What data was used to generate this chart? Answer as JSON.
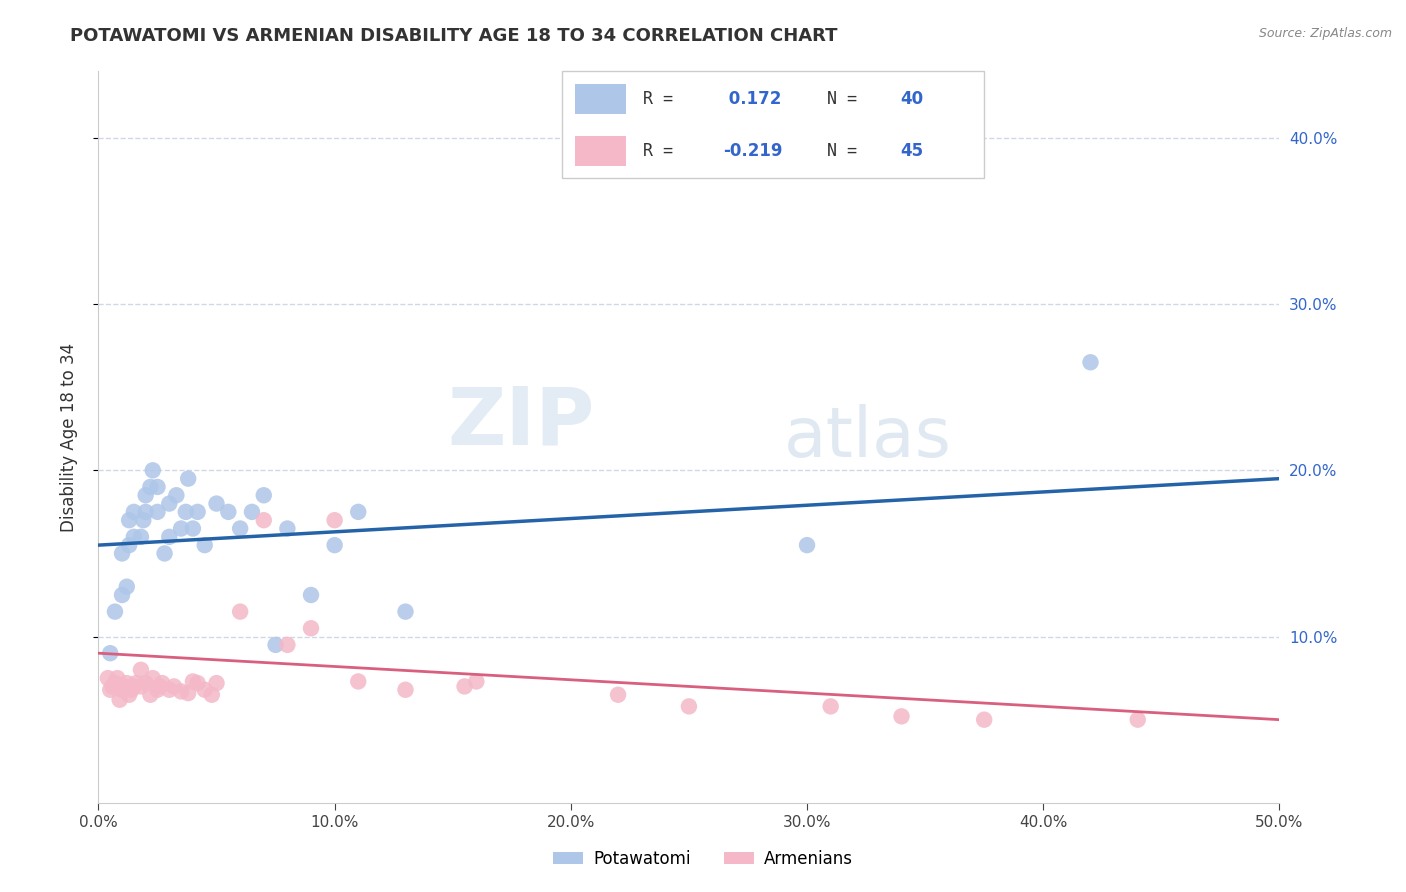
{
  "title": "POTAWATOMI VS ARMENIAN DISABILITY AGE 18 TO 34 CORRELATION CHART",
  "source": "Source: ZipAtlas.com",
  "ylabel": "Disability Age 18 to 34",
  "xlim": [
    0.0,
    0.5
  ],
  "ylim": [
    0.0,
    0.44
  ],
  "blue_R": 0.172,
  "blue_N": 40,
  "pink_R": -0.219,
  "pink_N": 45,
  "blue_color": "#aec6e8",
  "pink_color": "#f4b8c8",
  "blue_line_color": "#2563a8",
  "pink_line_color": "#d95f7f",
  "text_blue_color": "#3366cc",
  "watermark_zip": "ZIP",
  "watermark_atlas": "atlas",
  "blue_points_x": [
    0.005,
    0.007,
    0.01,
    0.01,
    0.012,
    0.013,
    0.013,
    0.015,
    0.015,
    0.018,
    0.019,
    0.02,
    0.02,
    0.022,
    0.023,
    0.025,
    0.025,
    0.028,
    0.03,
    0.03,
    0.033,
    0.035,
    0.037,
    0.038,
    0.04,
    0.042,
    0.045,
    0.05,
    0.055,
    0.06,
    0.065,
    0.07,
    0.075,
    0.08,
    0.09,
    0.1,
    0.11,
    0.13,
    0.3,
    0.42
  ],
  "blue_points_y": [
    0.09,
    0.115,
    0.125,
    0.15,
    0.13,
    0.155,
    0.17,
    0.16,
    0.175,
    0.16,
    0.17,
    0.185,
    0.175,
    0.19,
    0.2,
    0.175,
    0.19,
    0.15,
    0.16,
    0.18,
    0.185,
    0.165,
    0.175,
    0.195,
    0.165,
    0.175,
    0.155,
    0.18,
    0.175,
    0.165,
    0.175,
    0.185,
    0.095,
    0.165,
    0.125,
    0.155,
    0.175,
    0.115,
    0.155,
    0.265
  ],
  "pink_points_x": [
    0.004,
    0.005,
    0.006,
    0.007,
    0.008,
    0.009,
    0.01,
    0.011,
    0.012,
    0.013,
    0.014,
    0.015,
    0.016,
    0.018,
    0.018,
    0.02,
    0.022,
    0.023,
    0.025,
    0.026,
    0.027,
    0.03,
    0.032,
    0.035,
    0.038,
    0.04,
    0.042,
    0.045,
    0.048,
    0.05,
    0.06,
    0.07,
    0.08,
    0.09,
    0.1,
    0.11,
    0.13,
    0.155,
    0.16,
    0.22,
    0.25,
    0.31,
    0.34,
    0.375,
    0.44
  ],
  "pink_points_y": [
    0.075,
    0.068,
    0.07,
    0.072,
    0.075,
    0.062,
    0.068,
    0.07,
    0.072,
    0.065,
    0.068,
    0.07,
    0.072,
    0.07,
    0.08,
    0.072,
    0.065,
    0.075,
    0.068,
    0.07,
    0.072,
    0.068,
    0.07,
    0.067,
    0.066,
    0.073,
    0.072,
    0.068,
    0.065,
    0.072,
    0.115,
    0.17,
    0.095,
    0.105,
    0.17,
    0.073,
    0.068,
    0.07,
    0.073,
    0.065,
    0.058,
    0.058,
    0.052,
    0.05,
    0.05
  ],
  "blue_line_x0": 0.0,
  "blue_line_x1": 0.5,
  "blue_line_y0": 0.155,
  "blue_line_y1": 0.195,
  "pink_line_x0": 0.0,
  "pink_line_x1": 0.5,
  "pink_line_y0": 0.09,
  "pink_line_y1": 0.05,
  "grid_color": "#d0d8e8",
  "spine_color": "#cccccc"
}
